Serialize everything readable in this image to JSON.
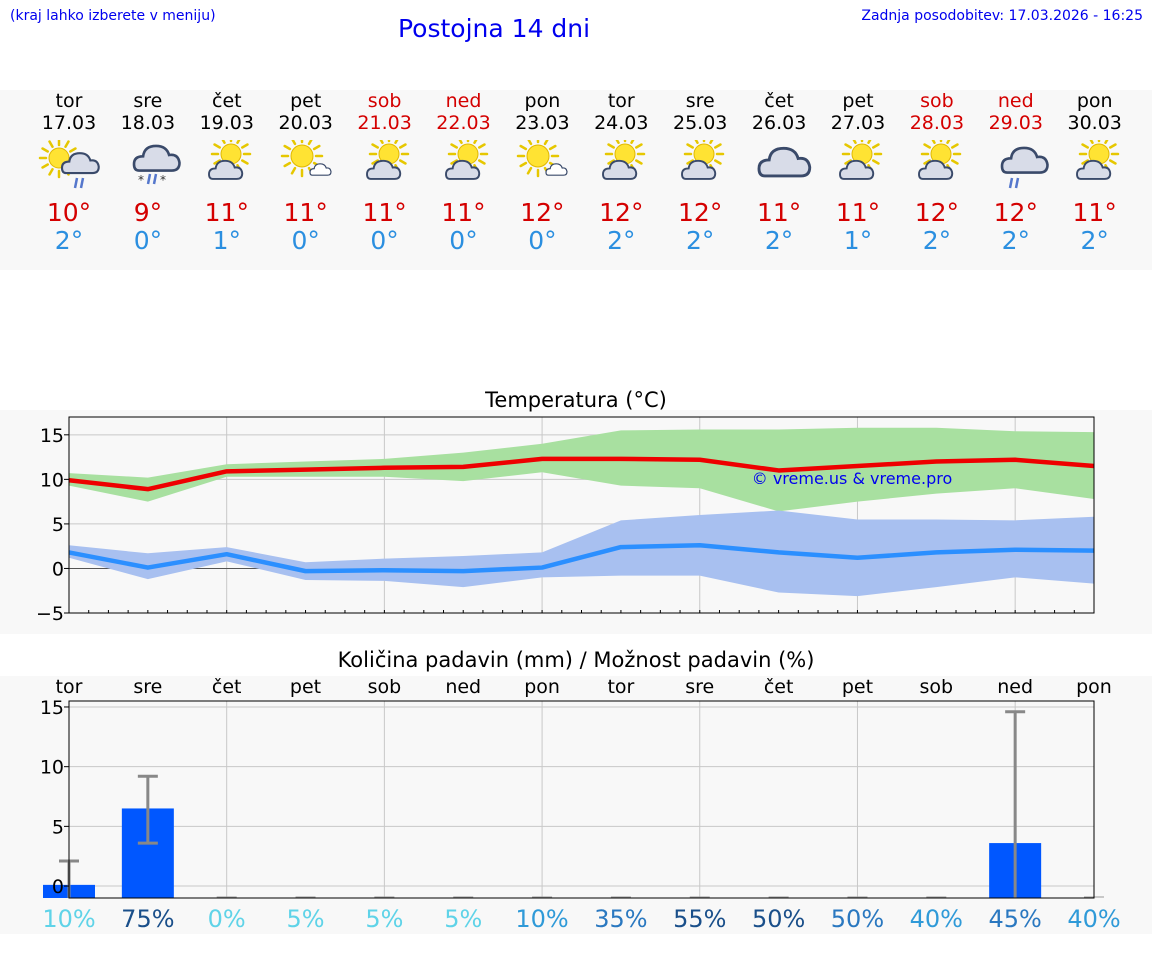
{
  "header": {
    "hint": "(kraj lahko izberete v meniju)",
    "title": "Postojna 14 dni",
    "updated": "Zadnja posodobitev: 17.03.2026 - 16:25"
  },
  "colors": {
    "max_temp": "#d40000",
    "min_temp": "#2b8fe0",
    "max_band": "#a8e0a0",
    "min_band": "#a8c0f0",
    "bar": "#0057ff",
    "link": "#0000ee"
  },
  "days": [
    {
      "wd": "tor",
      "date": "17.03",
      "weekend": false,
      "icon": "partly-cloudy-rain-icon",
      "tmax": "10°",
      "tmin": "2°"
    },
    {
      "wd": "sre",
      "date": "18.03",
      "weekend": false,
      "icon": "cloudy-sleet-icon",
      "tmax": "9°",
      "tmin": "0°"
    },
    {
      "wd": "čet",
      "date": "19.03",
      "weekend": false,
      "icon": "partly-cloudy-icon",
      "tmax": "11°",
      "tmin": "1°"
    },
    {
      "wd": "pet",
      "date": "20.03",
      "weekend": false,
      "icon": "sunny-small-cloud-icon",
      "tmax": "11°",
      "tmin": "0°"
    },
    {
      "wd": "sob",
      "date": "21.03",
      "weekend": true,
      "icon": "partly-cloudy-icon",
      "tmax": "11°",
      "tmin": "0°"
    },
    {
      "wd": "ned",
      "date": "22.03",
      "weekend": true,
      "icon": "partly-cloudy-icon",
      "tmax": "11°",
      "tmin": "0°"
    },
    {
      "wd": "pon",
      "date": "23.03",
      "weekend": false,
      "icon": "sunny-small-cloud-icon",
      "tmax": "12°",
      "tmin": "0°"
    },
    {
      "wd": "tor",
      "date": "24.03",
      "weekend": false,
      "icon": "partly-cloudy-icon",
      "tmax": "12°",
      "tmin": "2°"
    },
    {
      "wd": "sre",
      "date": "25.03",
      "weekend": false,
      "icon": "partly-cloudy-icon",
      "tmax": "12°",
      "tmin": "2°"
    },
    {
      "wd": "čet",
      "date": "26.03",
      "weekend": false,
      "icon": "cloudy-icon",
      "tmax": "11°",
      "tmin": "2°"
    },
    {
      "wd": "pet",
      "date": "27.03",
      "weekend": false,
      "icon": "partly-cloudy-icon",
      "tmax": "11°",
      "tmin": "1°"
    },
    {
      "wd": "sob",
      "date": "28.03",
      "weekend": true,
      "icon": "partly-cloudy-icon",
      "tmax": "12°",
      "tmin": "2°"
    },
    {
      "wd": "ned",
      "date": "29.03",
      "weekend": true,
      "icon": "cloudy-rain-icon",
      "tmax": "12°",
      "tmin": "2°"
    },
    {
      "wd": "pon",
      "date": "30.03",
      "weekend": false,
      "icon": "partly-cloudy-icon",
      "tmax": "11°",
      "tmin": "2°"
    }
  ],
  "chart_data": [
    {
      "type": "line",
      "title": "Temperatura (°C)",
      "watermark": "© vreme.us & vreme.pro",
      "ylim": [
        -5,
        17
      ],
      "yticks": [
        -5,
        0,
        5,
        10,
        15
      ],
      "ytick_labels": [
        "−5",
        "0",
        "5",
        "10",
        "15"
      ],
      "x": [
        0,
        1,
        2,
        3,
        4,
        5,
        6,
        7,
        8,
        9,
        10,
        11,
        12,
        13
      ],
      "series": [
        {
          "name": "max",
          "values": [
            9.9,
            8.9,
            10.9,
            11.1,
            11.3,
            11.4,
            12.3,
            12.3,
            12.2,
            11.0,
            11.5,
            12.0,
            12.2,
            11.5
          ],
          "band_low": [
            9.3,
            7.5,
            10.3,
            10.3,
            10.3,
            9.8,
            10.8,
            9.3,
            9.0,
            6.4,
            7.5,
            8.4,
            9.0,
            7.8
          ],
          "band_high": [
            10.7,
            10.2,
            11.7,
            12.0,
            12.3,
            13.0,
            14.0,
            15.5,
            15.6,
            15.6,
            15.8,
            15.8,
            15.4,
            15.3
          ]
        },
        {
          "name": "min",
          "values": [
            1.8,
            0.1,
            1.6,
            -0.3,
            -0.2,
            -0.3,
            0.1,
            2.4,
            2.6,
            1.8,
            1.2,
            1.8,
            2.1,
            2.0
          ],
          "band_low": [
            1.2,
            -1.2,
            0.8,
            -1.3,
            -1.4,
            -2.1,
            -1.0,
            -0.8,
            -0.8,
            -2.7,
            -3.1,
            -2.1,
            -1.0,
            -1.7
          ],
          "band_high": [
            2.6,
            1.7,
            2.4,
            0.7,
            1.1,
            1.4,
            1.8,
            5.4,
            6.0,
            6.5,
            5.5,
            5.5,
            5.4,
            5.8
          ]
        }
      ]
    },
    {
      "type": "bar",
      "title": "Količina padavin (mm) / Možnost padavin (%)",
      "ylim": [
        -1,
        15.5
      ],
      "yticks": [
        0,
        5,
        10,
        15
      ],
      "ytick_labels": [
        "0",
        "5",
        "10",
        "15"
      ],
      "categories": [
        "tor",
        "sre",
        "čet",
        "pet",
        "sob",
        "ned",
        "pon",
        "tor",
        "sre",
        "čet",
        "pet",
        "sob",
        "ned",
        "pon"
      ],
      "values": [
        0.1,
        6.5,
        0,
        0,
        0,
        0,
        0,
        0,
        0,
        0,
        0,
        0,
        3.6,
        0
      ],
      "err_low": [
        0,
        3.6,
        0,
        0,
        0,
        0,
        0,
        0,
        0,
        0,
        0,
        0,
        0,
        0
      ],
      "err_high": [
        2.1,
        9.2,
        0,
        0,
        0,
        0,
        0,
        0,
        0,
        0,
        0,
        0,
        14.6,
        0
      ],
      "probabilities": [
        "10%",
        "75%",
        "0%",
        "5%",
        "5%",
        "5%",
        "10%",
        "35%",
        "55%",
        "50%",
        "50%",
        "40%",
        "45%",
        "40%"
      ],
      "probability_colors": [
        "#5fd3e8",
        "#1a4f8a",
        "#5fd3e8",
        "#5fd3e8",
        "#5fd3e8",
        "#5fd3e8",
        "#2f9ad8",
        "#2a78c0",
        "#1a4f8a",
        "#1a4f8a",
        "#2a78c0",
        "#2f9ad8",
        "#2a78c0",
        "#2f9ad8"
      ]
    }
  ]
}
